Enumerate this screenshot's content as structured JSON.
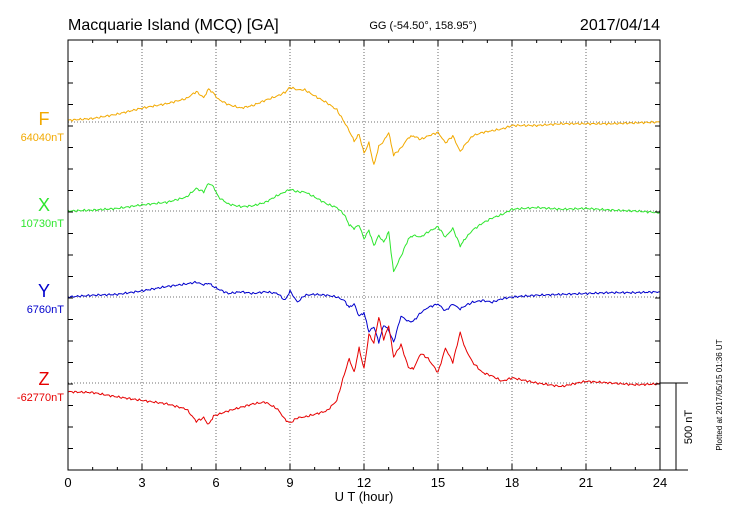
{
  "chart_data": {
    "type": "line",
    "title": "Macquarie Island (MCQ)  [GA]",
    "coordinates": "GG (-54.50°, 158.95°)",
    "date": "2017/04/14",
    "xlabel": "U T (hour)",
    "xlim": [
      0,
      24
    ],
    "x_ticks": [
      0,
      3,
      6,
      9,
      12,
      15,
      18,
      21,
      24
    ],
    "x_tick_labels": [
      "0",
      "3",
      "6",
      "9",
      "12",
      "15",
      "18",
      "21",
      "24"
    ],
    "grid": "dotted",
    "scale_bar_label": "500 nT",
    "scale_bar_nT": 500,
    "plotted_note": "Plotted at 2017/05/15 01:36 UT",
    "series": [
      {
        "name": "F",
        "baseline_label": "64040nT",
        "baseline_nT": 64040,
        "color": "#f2a900",
        "x": [
          0,
          1,
          2,
          3,
          4,
          4.8,
          5.2,
          5.5,
          5.7,
          5.9,
          6.1,
          6.5,
          7,
          7.5,
          8,
          8.5,
          8.8,
          9,
          9.3,
          9.6,
          10,
          10.5,
          10.9,
          11.2,
          11.4,
          11.6,
          11.8,
          12,
          12.2,
          12.4,
          12.6,
          12.8,
          13,
          13.2,
          13.5,
          13.8,
          14,
          14.3,
          14.6,
          15,
          15.3,
          15.6,
          15.9,
          16.1,
          16.4,
          16.8,
          17.2,
          17.6,
          18,
          19,
          20,
          21,
          22,
          23,
          24
        ],
        "values": [
          10,
          20,
          45,
          80,
          105,
          135,
          175,
          140,
          190,
          165,
          130,
          100,
          80,
          95,
          125,
          150,
          170,
          200,
          185,
          185,
          150,
          110,
          70,
          0,
          -50,
          -110,
          -70,
          -180,
          -120,
          -250,
          -140,
          -110,
          -60,
          -190,
          -150,
          -90,
          -80,
          -100,
          -80,
          -60,
          -120,
          -80,
          -170,
          -130,
          -80,
          -60,
          -50,
          -40,
          -20,
          -20,
          -10,
          -10,
          -10,
          -5,
          0
        ]
      },
      {
        "name": "X",
        "baseline_label": "10730nT",
        "baseline_nT": 10730,
        "color": "#2ee62e",
        "x": [
          0,
          1,
          2,
          3,
          4,
          4.8,
          5.2,
          5.5,
          5.7,
          5.9,
          6.1,
          6.5,
          7,
          7.5,
          8,
          8.5,
          8.8,
          9,
          9.3,
          9.6,
          10,
          10.5,
          10.9,
          11.2,
          11.4,
          11.6,
          11.8,
          12,
          12.2,
          12.4,
          12.6,
          12.8,
          13,
          13.2,
          13.5,
          13.8,
          14,
          14.3,
          14.6,
          15,
          15.3,
          15.6,
          15.9,
          16.1,
          16.4,
          16.8,
          17.2,
          17.6,
          18,
          19,
          20,
          21,
          22,
          23,
          24
        ],
        "values": [
          0,
          5,
          15,
          35,
          50,
          80,
          130,
          110,
          160,
          140,
          80,
          40,
          25,
          30,
          50,
          90,
          110,
          125,
          110,
          110,
          80,
          40,
          20,
          -20,
          -80,
          -100,
          -80,
          -160,
          -110,
          -200,
          -140,
          -180,
          -120,
          -350,
          -260,
          -160,
          -140,
          -150,
          -120,
          -90,
          -150,
          -100,
          -200,
          -160,
          -110,
          -70,
          -40,
          -20,
          10,
          20,
          10,
          15,
          5,
          0,
          -10
        ]
      },
      {
        "name": "Y",
        "baseline_label": "6760nT",
        "baseline_nT": 6760,
        "color": "#0000cc",
        "x": [
          0,
          1,
          2,
          3,
          4,
          4.8,
          5.2,
          5.5,
          5.7,
          5.9,
          6.1,
          6.5,
          7,
          7.5,
          8,
          8.5,
          8.8,
          9,
          9.3,
          9.6,
          10,
          10.5,
          10.9,
          11.2,
          11.4,
          11.6,
          11.8,
          12,
          12.2,
          12.4,
          12.6,
          12.8,
          13,
          13.2,
          13.5,
          13.8,
          14,
          14.3,
          14.6,
          15,
          15.3,
          15.6,
          15.9,
          16.1,
          16.4,
          16.8,
          17.2,
          17.6,
          18,
          19,
          20,
          21,
          22,
          23,
          24
        ],
        "values": [
          0,
          10,
          15,
          35,
          60,
          75,
          85,
          70,
          80,
          60,
          45,
          20,
          30,
          20,
          30,
          20,
          -20,
          35,
          -30,
          10,
          15,
          10,
          0,
          -20,
          -60,
          -40,
          -110,
          -90,
          -200,
          -170,
          -260,
          -160,
          -190,
          -260,
          -110,
          -140,
          -140,
          -90,
          -60,
          -40,
          -80,
          -40,
          -70,
          -50,
          -30,
          -20,
          -30,
          -10,
          0,
          10,
          15,
          20,
          25,
          25,
          30
        ]
      },
      {
        "name": "Z",
        "baseline_label": "-62770nT",
        "baseline_nT": -62770,
        "color": "#e60000",
        "x": [
          0,
          1,
          2,
          3,
          4,
          4.8,
          5.2,
          5.5,
          5.7,
          5.9,
          6.1,
          6.5,
          7,
          7.5,
          8,
          8.5,
          8.8,
          9,
          9.3,
          9.6,
          10,
          10.5,
          10.9,
          11.2,
          11.4,
          11.6,
          11.8,
          12,
          12.2,
          12.4,
          12.6,
          12.8,
          13,
          13.2,
          13.5,
          13.8,
          14,
          14.3,
          14.6,
          15,
          15.3,
          15.6,
          15.9,
          16.1,
          16.4,
          16.8,
          17.2,
          17.6,
          18,
          19,
          20,
          21,
          22,
          23,
          24
        ],
        "values": [
          -50,
          -55,
          -80,
          -100,
          -120,
          -150,
          -220,
          -200,
          -240,
          -190,
          -180,
          -160,
          -140,
          -120,
          -110,
          -150,
          -210,
          -230,
          -200,
          -195,
          -180,
          -160,
          -100,
          50,
          140,
          60,
          200,
          80,
          280,
          230,
          380,
          250,
          330,
          150,
          220,
          90,
          80,
          170,
          140,
          60,
          200,
          120,
          290,
          200,
          120,
          60,
          40,
          10,
          30,
          0,
          -20,
          10,
          0,
          -10,
          -5
        ]
      }
    ]
  }
}
